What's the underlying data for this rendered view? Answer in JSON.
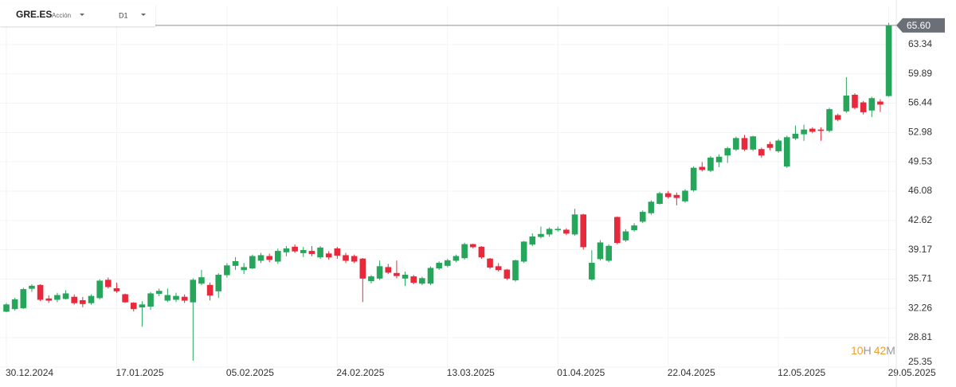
{
  "header": {
    "symbol": "GRE.ES",
    "kind": "Acción",
    "timeframe": "D1"
  },
  "timer": [
    "10",
    "H",
    "42",
    "M"
  ],
  "chart_data": {
    "type": "candlestick",
    "x": [
      "30.12.2024",
      null,
      null,
      null,
      null,
      null,
      null,
      null,
      null,
      null,
      null,
      null,
      null,
      "17.01.2025",
      null,
      null,
      null,
      null,
      null,
      null,
      null,
      null,
      null,
      null,
      null,
      null,
      "05.02.2025",
      null,
      null,
      null,
      null,
      null,
      null,
      null,
      null,
      null,
      null,
      null,
      null,
      "24.02.2025",
      null,
      null,
      null,
      null,
      null,
      null,
      null,
      null,
      null,
      null,
      null,
      null,
      "13.03.2025",
      null,
      null,
      null,
      null,
      null,
      null,
      null,
      null,
      null,
      null,
      null,
      null,
      "01.04.2025",
      null,
      null,
      null,
      null,
      null,
      null,
      null,
      null,
      null,
      null,
      null,
      null,
      "22.04.2025",
      null,
      null,
      null,
      null,
      null,
      null,
      null,
      null,
      null,
      null,
      null,
      null,
      "12.05.2025",
      null,
      null,
      null,
      null,
      null,
      null,
      null,
      null,
      null,
      null,
      null,
      null,
      "29.05.2025"
    ],
    "open": [
      31.9,
      32.2,
      32.3,
      34.6,
      35.0,
      33.4,
      33.3,
      33.4,
      33.6,
      33.2,
      32.9,
      33.5,
      35.6,
      34.6,
      33.9,
      32.9,
      32.4,
      32.5,
      34.0,
      33.2,
      33.3,
      33.6,
      33.0,
      35.2,
      35.0,
      34.3,
      36.2,
      37.3,
      36.8,
      37.0,
      37.9,
      38.4,
      37.8,
      38.9,
      39.5,
      38.8,
      39.0,
      38.3,
      38.7,
      39.3,
      38.5,
      38.4,
      38.1,
      35.5,
      35.8,
      37.1,
      36.4,
      35.8,
      36.0,
      35.2,
      35.2,
      37.0,
      37.3,
      37.9,
      38.2,
      39.8,
      39.5,
      38.1,
      37.2,
      36.8,
      35.6,
      37.8,
      39.8,
      40.7,
      41.0,
      41.5,
      41.5,
      41.0,
      43.3,
      35.7,
      38.1,
      37.9,
      43.0,
      40.3,
      41.5,
      42.5,
      43.5,
      44.6,
      45.8,
      45.6,
      44.9,
      46.2,
      48.9,
      48.5,
      49.5,
      50.3,
      51.0,
      52.3,
      51.0,
      51.0,
      51.6,
      50.8,
      49.0,
      52.3,
      52.8,
      53.4,
      53.3,
      53.2,
      55.0,
      55.5,
      57.4,
      56.5,
      55.6,
      56.6,
      57.3
    ],
    "high": [
      32.9,
      33.5,
      34.7,
      35.1,
      35.1,
      33.8,
      34.1,
      34.4,
      33.9,
      33.6,
      33.9,
      35.7,
      35.9,
      35.3,
      34.0,
      33.0,
      33.1,
      34.2,
      34.6,
      34.6,
      34.1,
      33.9,
      35.8,
      36.8,
      35.3,
      36.4,
      37.6,
      38.3,
      37.6,
      38.6,
      38.8,
      38.7,
      39.3,
      39.6,
      39.8,
      39.5,
      39.6,
      39.6,
      39.0,
      39.5,
      38.8,
      38.6,
      38.2,
      36.2,
      37.9,
      37.5,
      37.9,
      36.6,
      36.2,
      36.0,
      37.2,
      37.8,
      38.1,
      38.6,
      40.0,
      39.9,
      39.6,
      38.2,
      37.6,
      36.9,
      38.0,
      40.2,
      41.1,
      41.9,
      41.8,
      41.9,
      41.7,
      44.0,
      43.4,
      39.1,
      40.3,
      39.8,
      43.1,
      41.6,
      42.3,
      43.8,
      45.0,
      46.0,
      46.1,
      45.9,
      46.3,
      49.0,
      49.5,
      50.2,
      50.4,
      51.3,
      52.5,
      52.7,
      52.6,
      51.2,
      51.9,
      52.2,
      52.6,
      53.8,
      53.9,
      53.6,
      53.6,
      55.9,
      55.2,
      59.5,
      57.6,
      56.7,
      57.2,
      56.9,
      65.9
    ],
    "low": [
      31.8,
      32.0,
      32.2,
      34.2,
      33.1,
      32.9,
      33.0,
      33.3,
      32.7,
      32.4,
      32.7,
      33.3,
      34.6,
      34.1,
      32.9,
      31.9,
      30.1,
      32.1,
      33.7,
      33.0,
      33.0,
      32.9,
      26.1,
      35.0,
      33.2,
      33.5,
      35.9,
      36.8,
      36.3,
      36.9,
      37.6,
      37.7,
      37.5,
      38.4,
      38.8,
      38.3,
      38.4,
      38.1,
      38.0,
      38.1,
      37.6,
      37.6,
      33.0,
      35.2,
      35.6,
      36.3,
      35.8,
      34.9,
      35.1,
      35.0,
      35.0,
      36.8,
      37.1,
      37.7,
      38.0,
      39.3,
      38.1,
      36.9,
      36.6,
      35.6,
      35.4,
      37.6,
      39.6,
      40.5,
      40.7,
      41.3,
      40.9,
      40.8,
      39.2,
      35.5,
      37.9,
      37.7,
      39.8,
      40.1,
      41.3,
      42.3,
      43.3,
      44.5,
      45.2,
      44.4,
      44.7,
      46.0,
      48.4,
      48.3,
      48.9,
      49.4,
      50.8,
      50.8,
      50.8,
      50.0,
      50.9,
      50.6,
      48.8,
      52.1,
      52.0,
      52.9,
      52.0,
      53.0,
      54.3,
      55.3,
      55.7,
      55.1,
      54.8,
      55.4,
      57.2
    ],
    "close": [
      32.7,
      33.3,
      34.5,
      34.9,
      33.3,
      33.2,
      33.8,
      34.0,
      32.9,
      32.8,
      33.7,
      35.5,
      34.8,
      34.3,
      33.0,
      32.2,
      32.7,
      34.0,
      34.3,
      33.8,
      33.7,
      33.2,
      35.6,
      35.9,
      33.8,
      36.2,
      37.3,
      37.8,
      37.1,
      38.4,
      38.5,
      38.0,
      39.0,
      39.3,
      39.0,
      39.1,
      38.7,
      39.4,
      38.3,
      38.5,
      37.9,
      37.8,
      35.8,
      36.0,
      37.2,
      36.5,
      36.1,
      36.2,
      35.3,
      35.8,
      37.0,
      37.6,
      37.9,
      38.4,
      39.8,
      39.5,
      38.3,
      37.1,
      36.8,
      35.8,
      37.9,
      40.1,
      40.7,
      41.0,
      41.6,
      41.6,
      41.1,
      43.3,
      39.5,
      37.6,
      40.0,
      39.6,
      40.0,
      41.3,
      42.0,
      43.6,
      44.8,
      45.8,
      45.4,
      45.3,
      46.1,
      48.8,
      48.6,
      50.0,
      50.1,
      51.1,
      52.3,
      51.0,
      52.5,
      50.3,
      51.2,
      52.0,
      52.4,
      52.8,
      53.3,
      53.1,
      53.2,
      55.7,
      54.5,
      57.3,
      55.9,
      55.4,
      57.0,
      56.3,
      65.6
    ],
    "up_color": "#26a65b",
    "down_color": "#e8293b",
    "ylim": [
      25.25,
      67.84
    ],
    "yticks": [
      25.35,
      28.81,
      32.26,
      35.71,
      39.17,
      42.62,
      46.08,
      49.53,
      52.98,
      56.44,
      59.89,
      63.34
    ],
    "last_price": {
      "value": 65.6,
      "label": "65.60"
    },
    "grid": true
  }
}
